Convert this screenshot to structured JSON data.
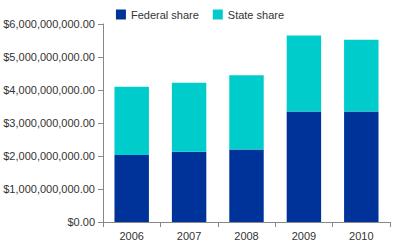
{
  "chart_data": {
    "type": "bar",
    "stacked": true,
    "categories": [
      "2006",
      "2007",
      "2008",
      "2009",
      "2010"
    ],
    "series": [
      {
        "name": "Federal share",
        "color": "#003399",
        "values": [
          2030000000,
          2130000000,
          2200000000,
          3350000000,
          3350000000
        ]
      },
      {
        "name": "State share",
        "color": "#00cccc",
        "values": [
          2070000000,
          2090000000,
          2250000000,
          2300000000,
          2170000000
        ]
      }
    ],
    "ylim": [
      0,
      6000000000
    ],
    "yticks": [
      {
        "value": 0,
        "label": "$0.00"
      },
      {
        "value": 1000000000,
        "label": "$1,000,000,000.00"
      },
      {
        "value": 2000000000,
        "label": "$2,000,000,000.00"
      },
      {
        "value": 3000000000,
        "label": "$3,000,000,000.00"
      },
      {
        "value": 4000000000,
        "label": "$4,000,000,000.00"
      },
      {
        "value": 5000000000,
        "label": "$5,000,000,000.00"
      },
      {
        "value": 6000000000,
        "label": "$6,000,000,000.00"
      }
    ],
    "grid": false,
    "legend": "top"
  }
}
